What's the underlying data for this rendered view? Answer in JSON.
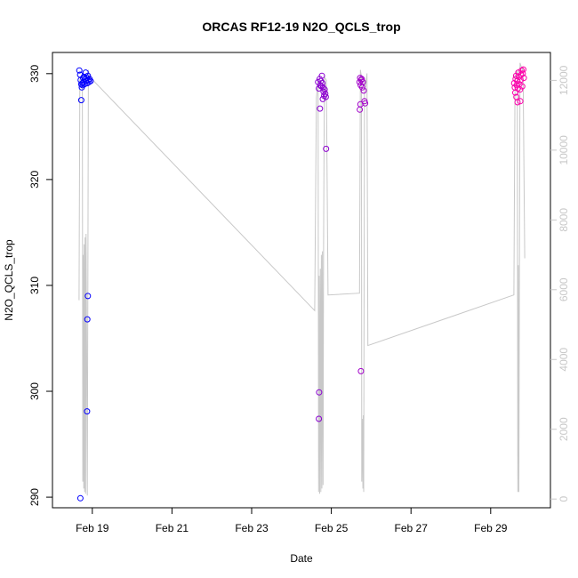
{
  "chart_data": {
    "type": "scatter",
    "title": "ORCAS RF12-19 N2O_QCLS_trop",
    "xlabel": "Date",
    "ylabel": "N2O_QCLS_trop",
    "xlim": [
      "2016-02-18T00:00",
      "2016-03-01T12:00"
    ],
    "ylim": [
      289,
      332
    ],
    "y2lim": [
      -250,
      12800
    ],
    "x_ticks": [
      {
        "label": "Feb 19",
        "value": "2016-02-19"
      },
      {
        "label": "Feb 21",
        "value": "2016-02-21"
      },
      {
        "label": "Feb 23",
        "value": "2016-02-23"
      },
      {
        "label": "Feb 25",
        "value": "2016-02-25"
      },
      {
        "label": "Feb 27",
        "value": "2016-02-27"
      },
      {
        "label": "Feb 29",
        "value": "2016-02-29"
      }
    ],
    "y_ticks": [
      290,
      300,
      310,
      320,
      330
    ],
    "y2_ticks": [
      0,
      2000,
      4000,
      6000,
      8000,
      10000,
      12000
    ],
    "grid": false,
    "point_color_scale": [
      "#0000ff",
      "#ff00aa"
    ],
    "altitude_series": {
      "color": "#c8c8c8",
      "points": [
        [
          "2016-02-18T16:00",
          5700
        ],
        [
          "2016-02-18T16:30",
          12000
        ],
        [
          "2016-02-18T18:00",
          12200
        ],
        [
          "2016-02-18T18:15",
          500
        ],
        [
          "2016-02-18T18:30",
          7000
        ],
        [
          "2016-02-18T18:50",
          300
        ],
        [
          "2016-02-18T19:05",
          7300
        ],
        [
          "2016-02-18T19:25",
          200
        ],
        [
          "2016-02-18T19:40",
          7500
        ],
        [
          "2016-02-18T20:00",
          150
        ],
        [
          "2016-02-18T20:15",
          7600
        ],
        [
          "2016-02-18T21:00",
          100
        ],
        [
          "2016-02-18T21:40",
          12300
        ],
        [
          "2016-02-18T22:30",
          12100
        ],
        [
          "2016-02-24T14:00",
          5400
        ],
        [
          "2016-02-24T15:00",
          11500
        ],
        [
          "2016-02-24T16:00",
          12000
        ],
        [
          "2016-02-24T16:20",
          200
        ],
        [
          "2016-02-24T16:40",
          6400
        ],
        [
          "2016-02-24T17:00",
          150
        ],
        [
          "2016-02-24T17:20",
          6600
        ],
        [
          "2016-02-24T17:40",
          200
        ],
        [
          "2016-02-24T18:00",
          7000
        ],
        [
          "2016-02-24T18:20",
          300
        ],
        [
          "2016-02-24T18:40",
          7100
        ],
        [
          "2016-02-24T19:00",
          400
        ],
        [
          "2016-02-24T19:20",
          7300
        ],
        [
          "2016-02-24T19:50",
          12100
        ],
        [
          "2016-02-24T21:00",
          12000
        ],
        [
          "2016-02-24T22:00",
          5850
        ],
        [
          "2016-02-25T17:00",
          5900
        ],
        [
          "2016-02-25T17:30",
          12300
        ],
        [
          "2016-02-25T18:10",
          12100
        ],
        [
          "2016-02-25T18:20",
          500
        ],
        [
          "2016-02-25T18:40",
          2300
        ],
        [
          "2016-02-25T19:00",
          300
        ],
        [
          "2016-02-25T19:15",
          2400
        ],
        [
          "2016-02-25T19:30",
          200
        ],
        [
          "2016-02-25T20:00",
          12000
        ],
        [
          "2016-02-25T20:30",
          11800
        ],
        [
          "2016-02-25T21:30",
          12200
        ],
        [
          "2016-02-25T22:00",
          4400
        ],
        [
          "2016-02-29T14:00",
          5850
        ],
        [
          "2016-02-29T14:40",
          12100
        ],
        [
          "2016-02-29T16:00",
          12300
        ],
        [
          "2016-02-29T16:20",
          200
        ],
        [
          "2016-02-29T16:40",
          6700
        ],
        [
          "2016-02-29T17:00",
          200
        ],
        [
          "2016-02-29T17:20",
          7200
        ],
        [
          "2016-02-29T17:40",
          12500
        ],
        [
          "2016-02-29T19:00",
          12300
        ],
        [
          "2016-02-29T19:30",
          12400
        ],
        [
          "2016-02-29T20:30",
          6900
        ]
      ]
    },
    "n2o_points": [
      [
        "2016-02-18T16:10",
        330.3
      ],
      [
        "2016-02-18T16:40",
        329.9
      ],
      [
        "2016-02-18T17:00",
        329.4
      ],
      [
        "2016-02-18T17:20",
        329.0
      ],
      [
        "2016-02-18T17:40",
        328.7
      ],
      [
        "2016-02-18T18:00",
        329.1
      ],
      [
        "2016-02-18T18:10",
        328.9
      ],
      [
        "2016-02-18T18:30",
        329.6
      ],
      [
        "2016-02-18T18:40",
        329.2
      ],
      [
        "2016-02-18T19:00",
        329.7
      ],
      [
        "2016-02-18T19:20",
        329.0
      ],
      [
        "2016-02-18T19:40",
        329.5
      ],
      [
        "2016-02-18T20:00",
        330.1
      ],
      [
        "2016-02-18T20:20",
        329.3
      ],
      [
        "2016-02-18T20:40",
        329.6
      ],
      [
        "2016-02-18T21:00",
        329.1
      ],
      [
        "2016-02-18T21:20",
        329.8
      ],
      [
        "2016-02-18T21:40",
        329.4
      ],
      [
        "2016-02-18T22:00",
        329.2
      ],
      [
        "2016-02-18T22:20",
        329.5
      ],
      [
        "2016-02-18T23:00",
        329.3
      ],
      [
        "2016-02-18T17:20",
        327.5
      ],
      [
        "2016-02-18T16:50",
        289.9
      ],
      [
        "2016-02-18T21:20",
        309.0
      ],
      [
        "2016-02-18T21:00",
        306.8
      ],
      [
        "2016-02-18T20:50",
        298.1
      ],
      [
        "2016-02-24T16:00",
        329.2
      ],
      [
        "2016-02-24T16:30",
        328.6
      ],
      [
        "2016-02-24T17:00",
        329.5
      ],
      [
        "2016-02-24T17:20",
        328.9
      ],
      [
        "2016-02-24T17:40",
        329.3
      ],
      [
        "2016-02-24T18:00",
        328.8
      ],
      [
        "2016-02-24T18:20",
        329.8
      ],
      [
        "2016-02-24T18:40",
        329.1
      ],
      [
        "2016-02-24T19:00",
        328.7
      ],
      [
        "2016-02-24T19:20",
        328.3
      ],
      [
        "2016-02-24T19:40",
        327.9
      ],
      [
        "2016-02-24T20:00",
        328.5
      ],
      [
        "2016-02-24T20:20",
        328.1
      ],
      [
        "2016-02-24T20:40",
        327.8
      ],
      [
        "2016-02-24T18:50",
        327.6
      ],
      [
        "2016-02-24T17:10",
        326.7
      ],
      [
        "2016-02-24T20:50",
        322.9
      ],
      [
        "2016-02-24T16:40",
        299.9
      ],
      [
        "2016-02-24T16:30",
        297.4
      ],
      [
        "2016-02-25T17:00",
        329.2
      ],
      [
        "2016-02-25T17:20",
        329.6
      ],
      [
        "2016-02-25T17:40",
        328.9
      ],
      [
        "2016-02-25T18:00",
        329.4
      ],
      [
        "2016-02-25T18:20",
        329.5
      ],
      [
        "2016-02-25T18:40",
        328.7
      ],
      [
        "2016-02-25T19:00",
        329.2
      ],
      [
        "2016-02-25T19:30",
        328.4
      ],
      [
        "2016-02-25T20:00",
        327.4
      ],
      [
        "2016-02-25T20:20",
        327.2
      ],
      [
        "2016-02-25T17:30",
        327.1
      ],
      [
        "2016-02-25T17:10",
        326.6
      ],
      [
        "2016-02-25T17:50",
        301.9
      ],
      [
        "2016-02-29T14:10",
        329.1
      ],
      [
        "2016-02-29T14:30",
        328.7
      ],
      [
        "2016-02-29T15:00",
        329.5
      ],
      [
        "2016-02-29T15:20",
        329.8
      ],
      [
        "2016-02-29T15:40",
        328.9
      ],
      [
        "2016-02-29T16:00",
        329.3
      ],
      [
        "2016-02-29T16:20",
        328.6
      ],
      [
        "2016-02-29T16:40",
        330.1
      ],
      [
        "2016-02-29T17:00",
        329.7
      ],
      [
        "2016-02-29T17:20",
        329.0
      ],
      [
        "2016-02-29T17:40",
        328.5
      ],
      [
        "2016-02-29T18:00",
        329.4
      ],
      [
        "2016-02-29T18:20",
        329.9
      ],
      [
        "2016-02-29T18:40",
        330.3
      ],
      [
        "2016-02-29T19:00",
        328.8
      ],
      [
        "2016-02-29T19:20",
        330.0
      ],
      [
        "2016-02-29T19:40",
        330.4
      ],
      [
        "2016-02-29T20:00",
        329.6
      ],
      [
        "2016-02-29T14:50",
        328.2
      ],
      [
        "2016-02-29T15:30",
        327.8
      ],
      [
        "2016-02-29T16:10",
        327.3
      ],
      [
        "2016-02-29T17:50",
        327.4
      ]
    ]
  }
}
